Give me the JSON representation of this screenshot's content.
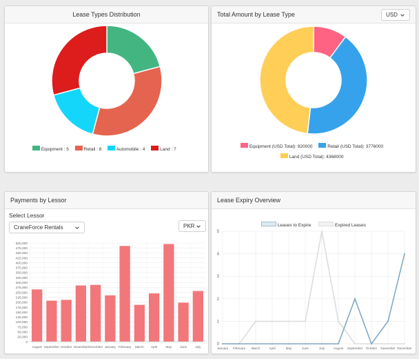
{
  "panel1": {
    "title": "Lease Types Distribution",
    "legend": [
      {
        "label": "Equipment : 5",
        "color": "#43b581"
      },
      {
        "label": "Retail : 8",
        "color": "#e5644f"
      },
      {
        "label": "Automobile : 4",
        "color": "#14d6fa"
      },
      {
        "label": "Land : 7",
        "color": "#dd1c1c"
      }
    ]
  },
  "panel2": {
    "title": "Total Amount by Lease Type",
    "currency": "USD",
    "legend": [
      {
        "label": "Equipment (USD Total): 920000",
        "color": "#ff6384"
      },
      {
        "label": "Retail (USD Total): 3776000",
        "color": "#36a2eb"
      },
      {
        "label": "Land (USD Total): 4368000",
        "color": "#ffce56"
      }
    ]
  },
  "panel3": {
    "title": "Payments by Lessor",
    "select_label": "Select Lessor",
    "lessor": "CraneForce Rentals",
    "currency": "PKR"
  },
  "panel4": {
    "title": "Lease Expiry Overview",
    "legend": [
      {
        "label": "Leases to Expire",
        "color": "#9ec0d6"
      },
      {
        "label": "Expired Leases",
        "color": "#dcdcdc"
      }
    ]
  },
  "chart_data": [
    {
      "type": "pie",
      "title": "Lease Types Distribution",
      "categories": [
        "Equipment",
        "Retail",
        "Automobile",
        "Land"
      ],
      "values": [
        5,
        8,
        4,
        7
      ],
      "colors": [
        "#43b581",
        "#e5644f",
        "#14d6fa",
        "#dd1c1c"
      ],
      "legend": "bottom"
    },
    {
      "type": "pie",
      "title": "Total Amount by Lease Type",
      "categories": [
        "Equipment",
        "Retail",
        "Land"
      ],
      "values": [
        920000,
        3776000,
        4368000
      ],
      "colors": [
        "#ff6384",
        "#36a2eb",
        "#ffce56"
      ],
      "legend": "bottom"
    },
    {
      "type": "bar",
      "title": "Payments by Lessor",
      "categories": [
        "August",
        "September",
        "October",
        "November",
        "December",
        "January",
        "February",
        "March",
        "April",
        "May",
        "June",
        "July"
      ],
      "values": [
        265000,
        208000,
        212000,
        285000,
        288000,
        235000,
        485000,
        187000,
        245000,
        495000,
        198000,
        257000
      ],
      "ylim": [
        0,
        500000
      ],
      "yticks": [
        "0",
        "25,000",
        "50,000",
        "75,000",
        "100,000",
        "125,000",
        "150,000",
        "175,000",
        "200,000",
        "225,000",
        "250,000",
        "275,000",
        "300,000",
        "325,000",
        "350,000",
        "375,000",
        "400,000",
        "425,000",
        "450,000",
        "475,000",
        "500,000"
      ],
      "color": "#f2777a"
    },
    {
      "type": "line",
      "title": "Lease Expiry Overview",
      "x": [
        "January",
        "February",
        "March",
        "April",
        "May",
        "June",
        "July",
        "August",
        "September",
        "October",
        "November",
        "December"
      ],
      "ylim": [
        0,
        5
      ],
      "yticks": [
        "0",
        "1",
        "2",
        "3",
        "4",
        "5"
      ],
      "series": [
        {
          "name": "Leases to Expire",
          "values": [
            0,
            0,
            0,
            0,
            0,
            0,
            0,
            0,
            2,
            0,
            1,
            4
          ],
          "color": "#7fa9c6"
        },
        {
          "name": "Expired Leases",
          "values": [
            0,
            0,
            1,
            1,
            1,
            1,
            5,
            1,
            0,
            0,
            0,
            0
          ],
          "color": "#dcdcdc"
        }
      ],
      "legend": "top"
    }
  ]
}
